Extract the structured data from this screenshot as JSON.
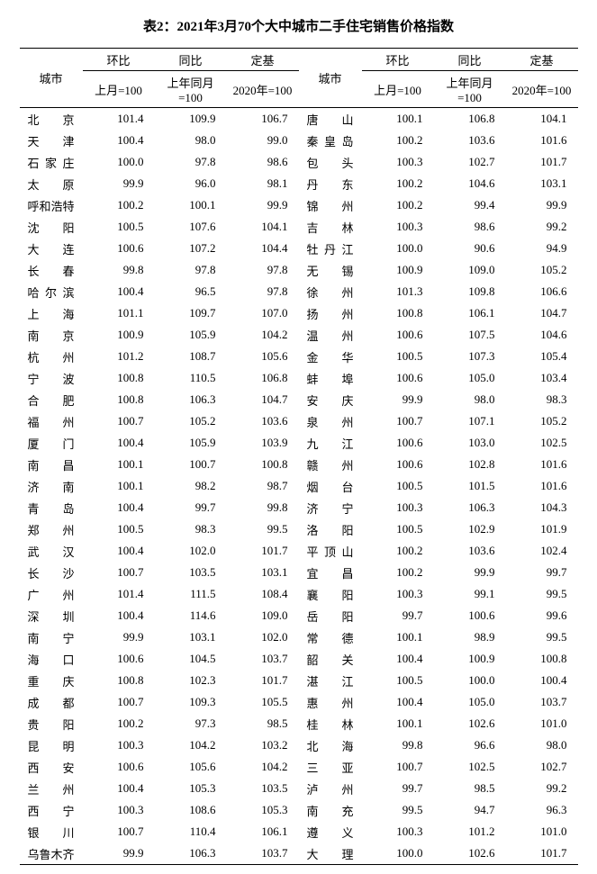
{
  "title": "表2：2021年3月70个大中城市二手住宅销售价格指数",
  "headers": {
    "city": "城市",
    "mom": "环比",
    "yoy": "同比",
    "base": "定基",
    "mom_sub": "上月=100",
    "yoy_sub": "上年同月=100",
    "base_sub": "2020年=100"
  },
  "colors": {
    "background": "#ffffff",
    "text": "#000000",
    "border": "#000000"
  },
  "rows": [
    {
      "c1": "北京",
      "m1": "101.4",
      "y1": "109.9",
      "b1": "106.7",
      "c2": "唐山",
      "m2": "100.1",
      "y2": "106.8",
      "b2": "104.1"
    },
    {
      "c1": "天津",
      "m1": "100.4",
      "y1": "98.0",
      "b1": "99.0",
      "c2": "秦皇岛",
      "m2": "100.2",
      "y2": "103.6",
      "b2": "101.6"
    },
    {
      "c1": "石家庄",
      "m1": "100.0",
      "y1": "97.8",
      "b1": "98.6",
      "c2": "包头",
      "m2": "100.3",
      "y2": "102.7",
      "b2": "101.7"
    },
    {
      "c1": "太原",
      "m1": "99.9",
      "y1": "96.0",
      "b1": "98.1",
      "c2": "丹东",
      "m2": "100.2",
      "y2": "104.6",
      "b2": "103.1"
    },
    {
      "c1": "呼和浩特",
      "m1": "100.2",
      "y1": "100.1",
      "b1": "99.9",
      "c2": "锦州",
      "m2": "100.2",
      "y2": "99.4",
      "b2": "99.9"
    },
    {
      "c1": "沈阳",
      "m1": "100.5",
      "y1": "107.6",
      "b1": "104.1",
      "c2": "吉林",
      "m2": "100.3",
      "y2": "98.6",
      "b2": "99.2"
    },
    {
      "c1": "大连",
      "m1": "100.6",
      "y1": "107.2",
      "b1": "104.4",
      "c2": "牡丹江",
      "m2": "100.0",
      "y2": "90.6",
      "b2": "94.9"
    },
    {
      "c1": "长春",
      "m1": "99.8",
      "y1": "97.8",
      "b1": "97.8",
      "c2": "无锡",
      "m2": "100.9",
      "y2": "109.0",
      "b2": "105.2"
    },
    {
      "c1": "哈尔滨",
      "m1": "100.4",
      "y1": "96.5",
      "b1": "97.8",
      "c2": "徐州",
      "m2": "101.3",
      "y2": "109.8",
      "b2": "106.6"
    },
    {
      "c1": "上海",
      "m1": "101.1",
      "y1": "109.7",
      "b1": "107.0",
      "c2": "扬州",
      "m2": "100.8",
      "y2": "106.1",
      "b2": "104.7"
    },
    {
      "c1": "南京",
      "m1": "100.9",
      "y1": "105.9",
      "b1": "104.2",
      "c2": "温州",
      "m2": "100.6",
      "y2": "107.5",
      "b2": "104.6"
    },
    {
      "c1": "杭州",
      "m1": "101.2",
      "y1": "108.7",
      "b1": "105.6",
      "c2": "金华",
      "m2": "100.5",
      "y2": "107.3",
      "b2": "105.4"
    },
    {
      "c1": "宁波",
      "m1": "100.8",
      "y1": "110.5",
      "b1": "106.8",
      "c2": "蚌埠",
      "m2": "100.6",
      "y2": "105.0",
      "b2": "103.4"
    },
    {
      "c1": "合肥",
      "m1": "100.8",
      "y1": "106.3",
      "b1": "104.7",
      "c2": "安庆",
      "m2": "99.9",
      "y2": "98.0",
      "b2": "98.3"
    },
    {
      "c1": "福州",
      "m1": "100.7",
      "y1": "105.2",
      "b1": "103.6",
      "c2": "泉州",
      "m2": "100.7",
      "y2": "107.1",
      "b2": "105.2"
    },
    {
      "c1": "厦门",
      "m1": "100.4",
      "y1": "105.9",
      "b1": "103.9",
      "c2": "九江",
      "m2": "100.6",
      "y2": "103.0",
      "b2": "102.5"
    },
    {
      "c1": "南昌",
      "m1": "100.1",
      "y1": "100.7",
      "b1": "100.8",
      "c2": "赣州",
      "m2": "100.6",
      "y2": "102.8",
      "b2": "101.6"
    },
    {
      "c1": "济南",
      "m1": "100.1",
      "y1": "98.2",
      "b1": "98.7",
      "c2": "烟台",
      "m2": "100.5",
      "y2": "101.5",
      "b2": "101.6"
    },
    {
      "c1": "青岛",
      "m1": "100.4",
      "y1": "99.7",
      "b1": "99.8",
      "c2": "济宁",
      "m2": "100.3",
      "y2": "106.3",
      "b2": "104.3"
    },
    {
      "c1": "郑州",
      "m1": "100.5",
      "y1": "98.3",
      "b1": "99.5",
      "c2": "洛阳",
      "m2": "100.5",
      "y2": "102.9",
      "b2": "101.9"
    },
    {
      "c1": "武汉",
      "m1": "100.4",
      "y1": "102.0",
      "b1": "101.7",
      "c2": "平顶山",
      "m2": "100.2",
      "y2": "103.6",
      "b2": "102.4"
    },
    {
      "c1": "长沙",
      "m1": "100.7",
      "y1": "103.5",
      "b1": "103.1",
      "c2": "宜昌",
      "m2": "100.2",
      "y2": "99.9",
      "b2": "99.7"
    },
    {
      "c1": "广州",
      "m1": "101.4",
      "y1": "111.5",
      "b1": "108.4",
      "c2": "襄阳",
      "m2": "100.3",
      "y2": "99.1",
      "b2": "99.5"
    },
    {
      "c1": "深圳",
      "m1": "100.4",
      "y1": "114.6",
      "b1": "109.0",
      "c2": "岳阳",
      "m2": "99.7",
      "y2": "100.6",
      "b2": "99.6"
    },
    {
      "c1": "南宁",
      "m1": "99.9",
      "y1": "103.1",
      "b1": "102.0",
      "c2": "常德",
      "m2": "100.1",
      "y2": "98.9",
      "b2": "99.5"
    },
    {
      "c1": "海口",
      "m1": "100.6",
      "y1": "104.5",
      "b1": "103.7",
      "c2": "韶关",
      "m2": "100.4",
      "y2": "100.9",
      "b2": "100.8"
    },
    {
      "c1": "重庆",
      "m1": "100.8",
      "y1": "102.3",
      "b1": "101.7",
      "c2": "湛江",
      "m2": "100.5",
      "y2": "100.0",
      "b2": "100.4"
    },
    {
      "c1": "成都",
      "m1": "100.7",
      "y1": "109.3",
      "b1": "105.5",
      "c2": "惠州",
      "m2": "100.4",
      "y2": "105.0",
      "b2": "103.7"
    },
    {
      "c1": "贵阳",
      "m1": "100.2",
      "y1": "97.3",
      "b1": "98.5",
      "c2": "桂林",
      "m2": "100.1",
      "y2": "102.6",
      "b2": "101.0"
    },
    {
      "c1": "昆明",
      "m1": "100.3",
      "y1": "104.2",
      "b1": "103.2",
      "c2": "北海",
      "m2": "99.8",
      "y2": "96.6",
      "b2": "98.0"
    },
    {
      "c1": "西安",
      "m1": "100.6",
      "y1": "105.6",
      "b1": "104.2",
      "c2": "三亚",
      "m2": "100.7",
      "y2": "102.5",
      "b2": "102.7"
    },
    {
      "c1": "兰州",
      "m1": "100.4",
      "y1": "105.3",
      "b1": "103.5",
      "c2": "泸州",
      "m2": "99.7",
      "y2": "98.5",
      "b2": "99.2"
    },
    {
      "c1": "西宁",
      "m1": "100.3",
      "y1": "108.6",
      "b1": "105.3",
      "c2": "南充",
      "m2": "99.5",
      "y2": "94.7",
      "b2": "96.3"
    },
    {
      "c1": "银川",
      "m1": "100.7",
      "y1": "110.4",
      "b1": "106.1",
      "c2": "遵义",
      "m2": "100.3",
      "y2": "101.2",
      "b2": "101.0"
    },
    {
      "c1": "乌鲁木齐",
      "m1": "99.9",
      "y1": "106.3",
      "b1": "103.7",
      "c2": "大理",
      "m2": "100.0",
      "y2": "102.6",
      "b2": "101.7"
    }
  ]
}
